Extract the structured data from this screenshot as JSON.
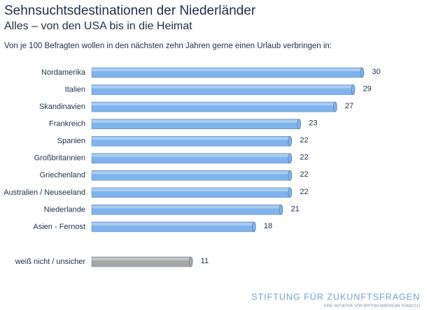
{
  "chart_data": {
    "type": "bar",
    "orientation": "horizontal",
    "title": "Sehnsuchtsdestinationen der Niederländer",
    "subtitle": "Alles – von den USA bis in die Heimat",
    "description": "Von je 100 Befragten wollen in den nächsten zehn Jahren gerne einen Urlaub verbringen in:",
    "categories": [
      "Nordamerika",
      "Italien",
      "Skandinavien",
      "Frankreich",
      "Spanien",
      "Großbritannien",
      "Griechenland",
      "Australien / Neuseeland",
      "Niederlande",
      "Asien - Fernost",
      "weiß nicht / unsicher"
    ],
    "values": [
      30,
      29,
      27,
      23,
      22,
      22,
      22,
      22,
      21,
      18,
      11
    ],
    "colors": [
      "#7fb3ec",
      "#7fb3ec",
      "#7fb3ec",
      "#7fb3ec",
      "#7fb3ec",
      "#7fb3ec",
      "#7fb3ec",
      "#7fb3ec",
      "#7fb3ec",
      "#7fb3ec",
      "#a6a6a6"
    ],
    "source": {
      "name": "STIFTUNG FÜR ZUKUNFTSFRAGEN",
      "tagline": "EINE INITIATIVE VON BRITISH AMERICAN TOBACCO"
    }
  }
}
